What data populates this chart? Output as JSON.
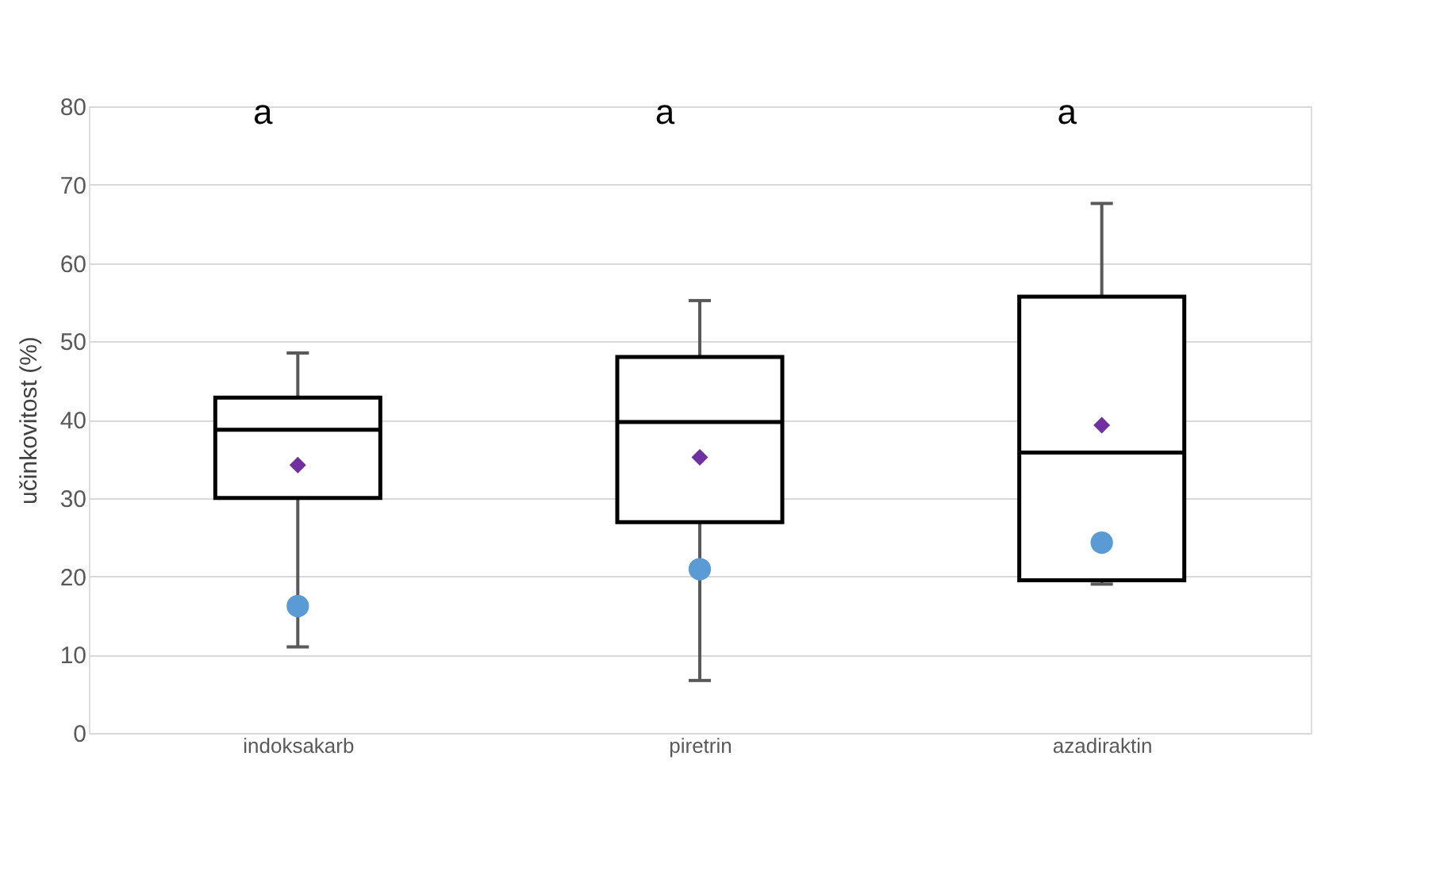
{
  "chart_data": {
    "type": "box",
    "ylabel": "učinkovitost (%)",
    "categories": [
      "indoksakarb",
      "piretrin",
      "azadiraktin"
    ],
    "boxes": [
      {
        "low": 11,
        "q1": 30,
        "median": 38.7,
        "q3": 42.8,
        "high": 48.5,
        "mean": 34.2
      },
      {
        "low": 6.7,
        "q1": 26.9,
        "median": 39.7,
        "q3": 48,
        "high": 55.2,
        "mean": 35.2
      },
      {
        "low": 19,
        "q1": 19.5,
        "median": 35.8,
        "q3": 55.7,
        "high": 67.6,
        "mean": 39.3
      }
    ],
    "series": [
      {
        "type": "scatter",
        "color": "#5b9bd5",
        "values": [
          16.2,
          20.9,
          24.3
        ]
      }
    ],
    "ylim": [
      0,
      80
    ],
    "yticks": [
      0,
      10,
      20,
      30,
      40,
      50,
      60,
      70,
      80
    ],
    "grid": "y",
    "annotations": [
      "a",
      "a",
      "a"
    ]
  }
}
